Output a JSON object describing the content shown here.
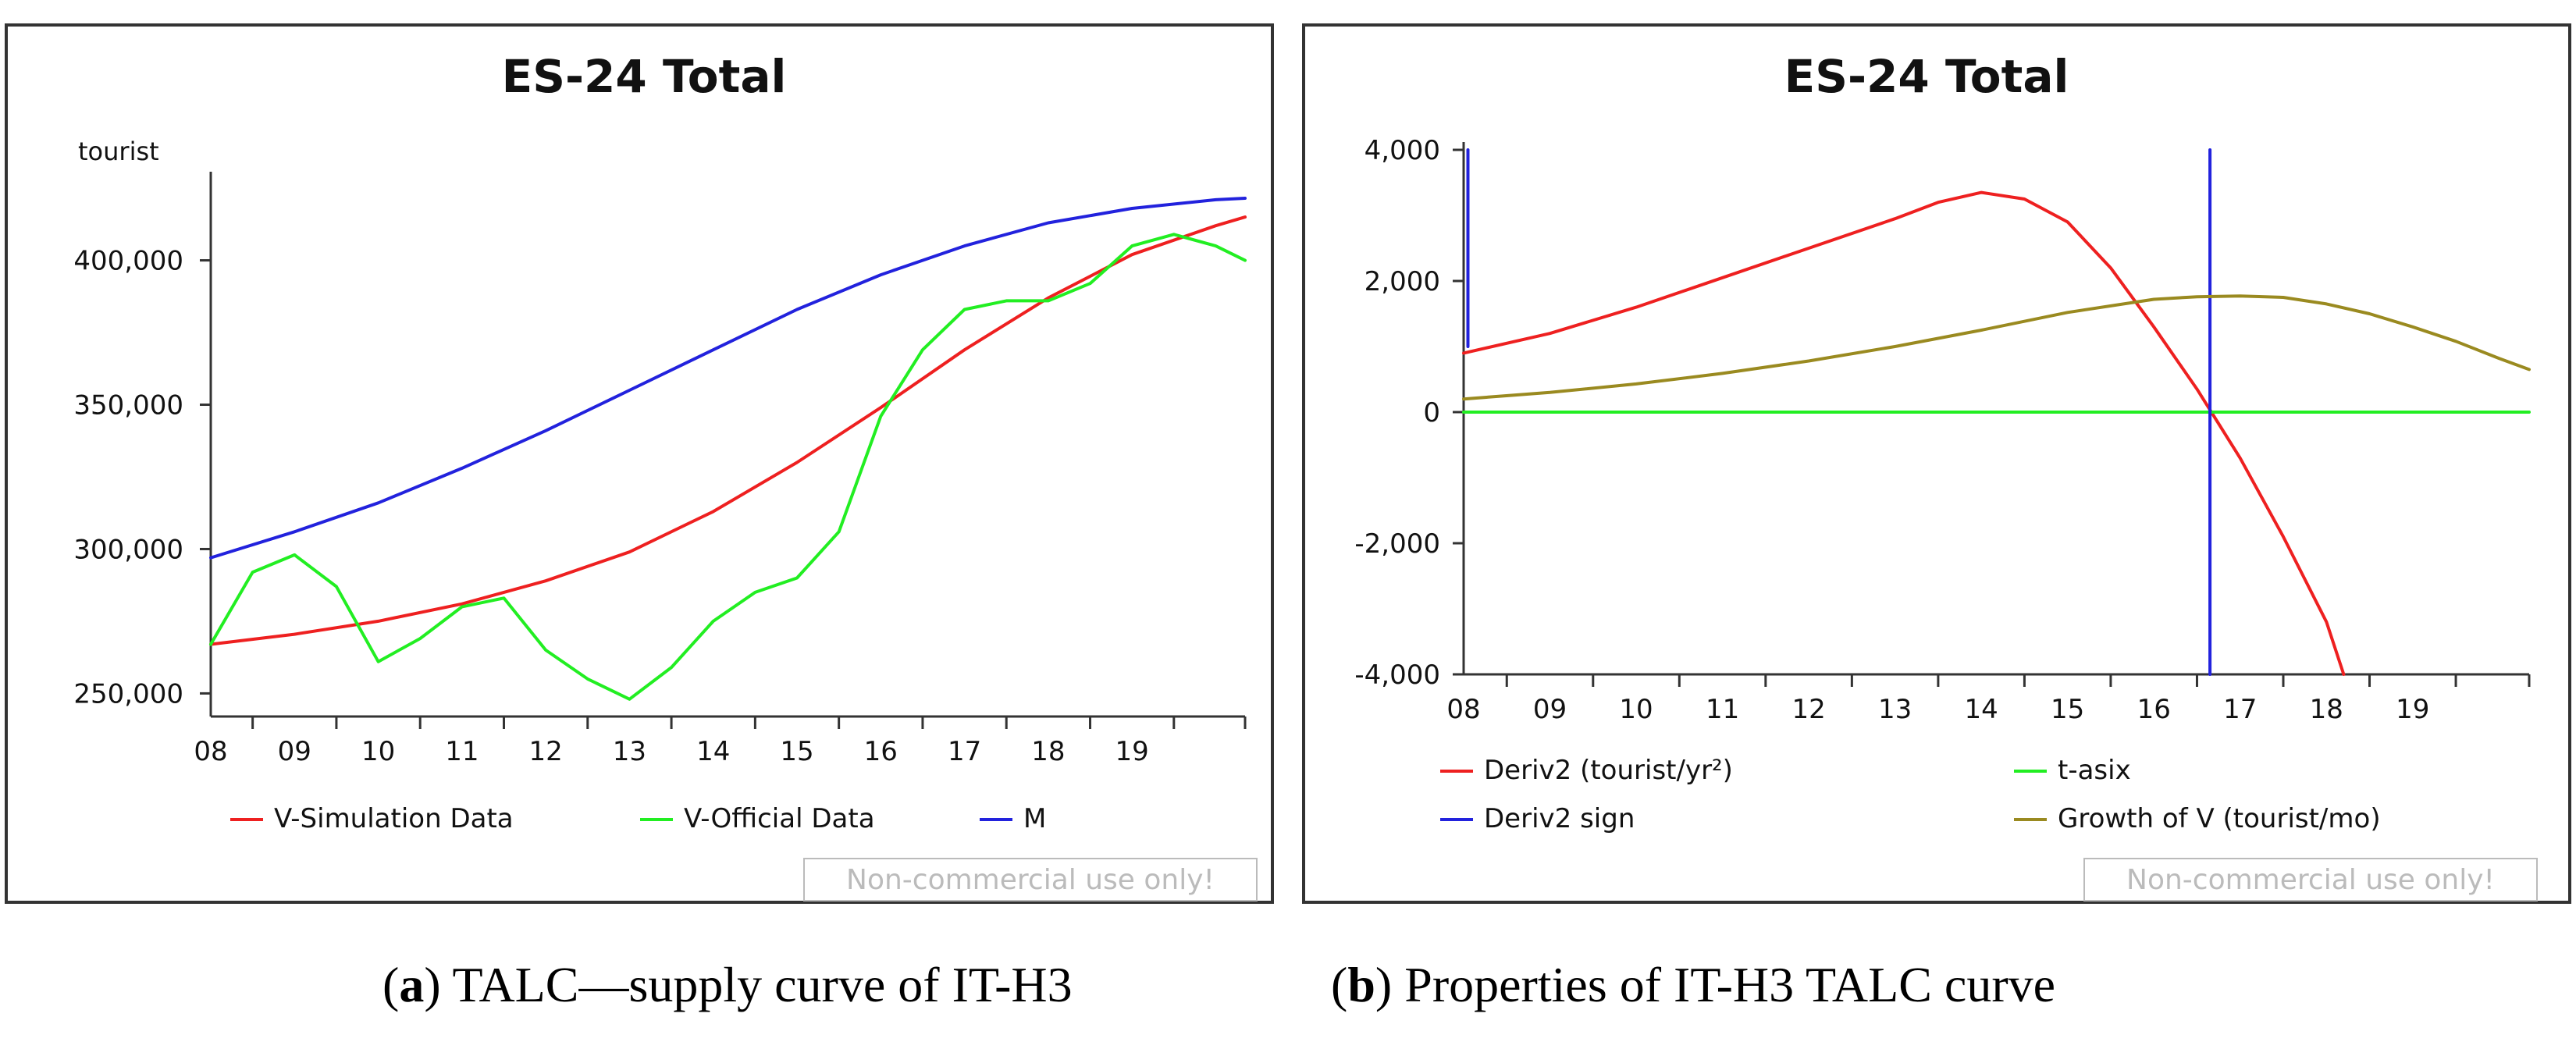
{
  "chart_data": [
    {
      "type": "line",
      "title": "ES-24 Total",
      "ylabel": "tourist",
      "xlabel": "",
      "x_ticks": [
        "08",
        "09",
        "10",
        "11",
        "12",
        "13",
        "14",
        "15",
        "16",
        "17",
        "18",
        "19"
      ],
      "x_range": [
        2007.5,
        2019.85
      ],
      "ylim": [
        242000,
        428000
      ],
      "y_ticks": [
        250000,
        300000,
        350000,
        400000
      ],
      "y_tick_labels": [
        "250,000",
        "300,000",
        "350,000",
        "400,000"
      ],
      "series": [
        {
          "name": "V-Simulation Data",
          "color": "#ee2020",
          "x": [
            2007.5,
            2008.5,
            2009.5,
            2010.5,
            2011.5,
            2012.5,
            2013.5,
            2014.5,
            2015.5,
            2016.5,
            2017.5,
            2018.5,
            2019.5,
            2019.85
          ],
          "y": [
            267000,
            270500,
            275000,
            281000,
            289000,
            299000,
            313000,
            330000,
            349000,
            369000,
            387000,
            402000,
            412000,
            415000
          ]
        },
        {
          "name": "V-Official Data",
          "color": "#22ee22",
          "x": [
            2007.5,
            2008.0,
            2008.5,
            2009.0,
            2009.5,
            2010.0,
            2010.5,
            2011.0,
            2011.5,
            2012.0,
            2012.5,
            2013.0,
            2013.5,
            2014.0,
            2014.5,
            2015.0,
            2015.5,
            2016.0,
            2016.5,
            2017.0,
            2017.5,
            2018.0,
            2018.5,
            2019.0,
            2019.5,
            2019.85
          ],
          "y": [
            267000,
            292000,
            298000,
            287000,
            261000,
            269000,
            280000,
            283000,
            265000,
            255000,
            248000,
            259000,
            275000,
            285000,
            290000,
            306000,
            346000,
            369000,
            383000,
            386000,
            386000,
            392000,
            405000,
            409000,
            405000,
            400000
          ]
        },
        {
          "name": "M",
          "color": "#2222dd",
          "x": [
            2007.5,
            2008.5,
            2009.5,
            2010.5,
            2011.5,
            2012.5,
            2013.5,
            2014.5,
            2015.5,
            2016.5,
            2017.5,
            2018.5,
            2019.5,
            2019.85
          ],
          "y": [
            297000,
            306000,
            316000,
            328000,
            341000,
            355000,
            369000,
            383000,
            395000,
            405000,
            413000,
            418000,
            421000,
            421500
          ]
        }
      ],
      "legend": [
        "V-Simulation Data",
        "V-Official Data",
        "M"
      ],
      "watermark": "Non-commercial use only!"
    },
    {
      "type": "line",
      "title": "ES-24 Total",
      "ylabel": "",
      "xlabel": "",
      "x_ticks": [
        "08",
        "09",
        "10",
        "11",
        "12",
        "13",
        "14",
        "15",
        "16",
        "17",
        "18",
        "19"
      ],
      "x_range": [
        2007.5,
        2019.85
      ],
      "ylim": [
        -4000,
        4000
      ],
      "y_ticks": [
        -4000,
        -2000,
        0,
        2000,
        4000
      ],
      "y_tick_labels": [
        "-4,000",
        "-2,000",
        "0",
        "2,000",
        "4,000"
      ],
      "series": [
        {
          "name": "Deriv2 (tourist/yr²)",
          "color": "#ee2020",
          "x": [
            2007.5,
            2008.5,
            2009.5,
            2010.5,
            2011.5,
            2012.5,
            2013.0,
            2013.5,
            2014.0,
            2014.5,
            2015.0,
            2015.5,
            2016.0,
            2016.5,
            2017.0,
            2017.5,
            2017.7
          ],
          "y": [
            900,
            1200,
            1600,
            2050,
            2500,
            2950,
            3200,
            3350,
            3250,
            2900,
            2200,
            1300,
            350,
            -700,
            -1900,
            -3200,
            -4000
          ]
        },
        {
          "name": "t-asix",
          "color": "#22ee22",
          "x": [
            2007.5,
            2019.85
          ],
          "y": [
            0,
            0
          ]
        },
        {
          "name": "Deriv2 sign",
          "color": "#2222dd",
          "x": [
            2007.55,
            2007.55,
            2007.55,
            2016.15,
            2016.15
          ],
          "y": [
            4000,
            1000,
            null,
            4000,
            -4000
          ]
        },
        {
          "name": "Growth of V (tourist/mo)",
          "color": "#9a8a20",
          "x": [
            2007.5,
            2008.5,
            2009.5,
            2010.5,
            2011.5,
            2012.5,
            2013.5,
            2014.5,
            2015.5,
            2016.0,
            2016.5,
            2017.0,
            2017.5,
            2018.0,
            2018.5,
            2019.0,
            2019.5,
            2019.85
          ],
          "y": [
            200,
            300,
            430,
            590,
            780,
            1000,
            1250,
            1520,
            1720,
            1760,
            1770,
            1750,
            1650,
            1500,
            1300,
            1080,
            820,
            650
          ]
        }
      ],
      "legend": [
        "Deriv2 (tourist/yr²)",
        "t-asix",
        "Deriv2 sign",
        "Growth of V (tourist/mo)"
      ],
      "watermark": "Non-commercial use only!"
    }
  ],
  "captions": {
    "a": {
      "label": "a",
      "open": "(",
      "close": ")",
      "text": " TALC—supply curve of IT-H3"
    },
    "b": {
      "label": "b",
      "open": "(",
      "close": ")",
      "text": " Properties of IT-H3 TALC curve"
    }
  }
}
